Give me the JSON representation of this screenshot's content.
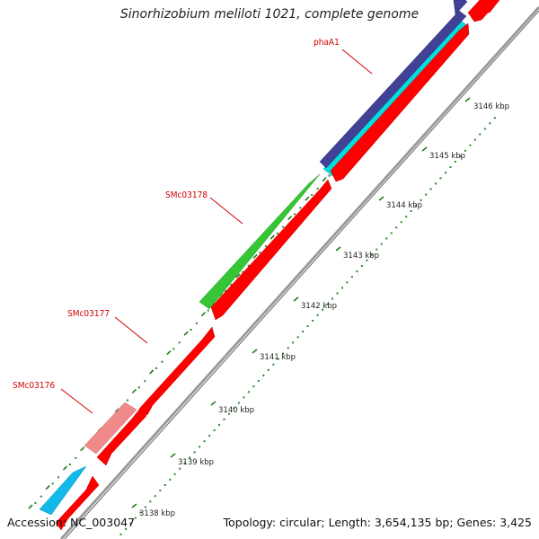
{
  "title": "Sinorhizobium meliloti 1021, complete genome",
  "accession": "Accession: NC_003047",
  "summary": "Topology: circular; Length: 3,654,135 bp; Genes: 3,425",
  "colors": {
    "backbone": "#9a9a9a",
    "forward_cds": "#ff0000",
    "reverse_cds": "#00dede",
    "feature_green": "#35c535",
    "feature_pink": "#f08a8a",
    "feature_navy": "#414196",
    "feature_cyan": "#12b8ea",
    "dots": "#2a8a2a",
    "dashes": "#1f7a1f",
    "label_red": "#d40000"
  },
  "gene_labels": [
    {
      "text": "phaA1"
    },
    {
      "text": "SMc03178"
    },
    {
      "text": "SMc03177"
    },
    {
      "text": "SMc03176"
    }
  ],
  "kbp_ticks": [
    {
      "label": "3138 kbp"
    },
    {
      "label": "3139 kbp"
    },
    {
      "label": "3140 kbp"
    },
    {
      "label": "3141 kbp"
    },
    {
      "label": "3142 kbp"
    },
    {
      "label": "3143 kbp"
    },
    {
      "label": "3144 kbp"
    },
    {
      "label": "3145 kbp"
    },
    {
      "label": "3146 kbp"
    }
  ]
}
